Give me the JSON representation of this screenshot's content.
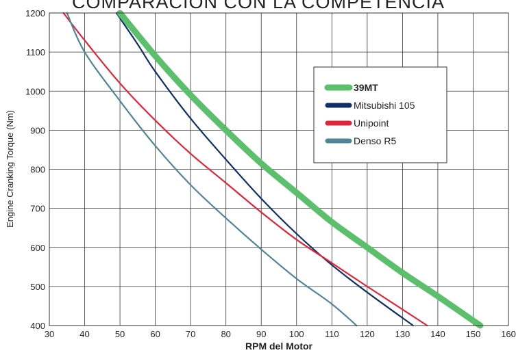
{
  "chart_data": {
    "type": "line",
    "title": "COMPARACIÓN CON LA COMPETENCIA",
    "xlabel": "RPM del Motor",
    "ylabel": "Engine Cranking Torque (Nm)",
    "xlim": [
      30,
      160
    ],
    "ylim": [
      400,
      1200
    ],
    "xticks": [
      30,
      40,
      50,
      60,
      70,
      80,
      90,
      100,
      110,
      120,
      130,
      140,
      150,
      160
    ],
    "yticks": [
      400,
      500,
      600,
      700,
      800,
      900,
      1000,
      1100,
      1200
    ],
    "grid": true,
    "legend_position": "upper-right",
    "series": [
      {
        "name": "39MT",
        "color": "#5cbf6b",
        "bold": true,
        "x": [
          50,
          60,
          70,
          80,
          90,
          100,
          110,
          120,
          130,
          140,
          152
        ],
        "y": [
          1200,
          1090,
          990,
          900,
          815,
          740,
          665,
          600,
          535,
          475,
          400
        ]
      },
      {
        "name": "Mitsubishi 105",
        "color": "#0f2f66",
        "bold": false,
        "x": [
          49,
          55,
          60,
          70,
          80,
          90,
          100,
          110,
          120,
          133
        ],
        "y": [
          1200,
          1120,
          1050,
          930,
          825,
          725,
          635,
          555,
          485,
          400
        ]
      },
      {
        "name": "Unipoint",
        "color": "#e0253a",
        "bold": false,
        "x": [
          34,
          40,
          50,
          60,
          70,
          80,
          90,
          100,
          110,
          120,
          137
        ],
        "y": [
          1200,
          1130,
          1020,
          925,
          840,
          765,
          690,
          620,
          560,
          500,
          400
        ]
      },
      {
        "name": "Denso R5",
        "color": "#4f8597",
        "bold": false,
        "x": [
          35,
          40,
          50,
          60,
          70,
          80,
          90,
          100,
          110,
          117
        ],
        "y": [
          1200,
          1100,
          975,
          860,
          760,
          675,
          595,
          520,
          455,
          400
        ]
      }
    ]
  }
}
